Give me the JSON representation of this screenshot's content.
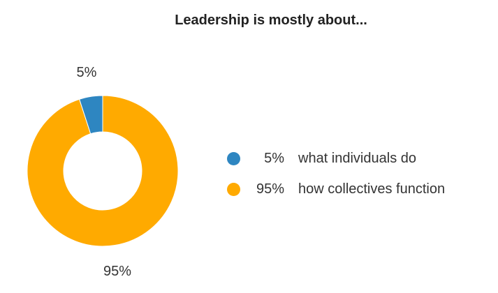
{
  "chart_data": {
    "type": "pie",
    "style": "donut",
    "title": "Leadership is mostly about...",
    "series": [
      {
        "name": "",
        "values": [
          5,
          95
        ]
      }
    ],
    "categories": [
      "what individuals do",
      "how collectives function"
    ],
    "data_labels": [
      "5%",
      "95%"
    ],
    "colors": [
      "#2e86c1",
      "#ffaa00"
    ],
    "legend_position": "right"
  },
  "legend": {
    "items": [
      {
        "pct": "5%",
        "label": "what individuals do",
        "color": "#2e86c1"
      },
      {
        "pct": "95%",
        "label": "how collectives function",
        "color": "#ffaa00"
      }
    ]
  }
}
